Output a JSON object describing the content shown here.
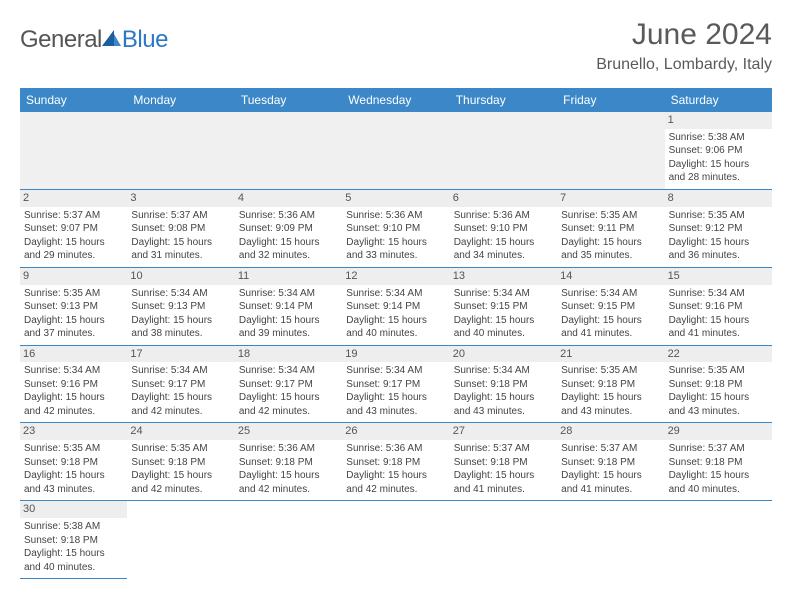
{
  "logo": {
    "part1": "General",
    "part2": "Blue"
  },
  "title": "June 2024",
  "location": "Brunello, Lombardy, Italy",
  "colors": {
    "header_bg": "#3b87c8",
    "header_text": "#ffffff",
    "date_bg": "#eeeeee",
    "empty_bg": "#f0f0f0",
    "border": "#3b87c8",
    "logo_gray": "#555555",
    "logo_blue": "#2b78c4",
    "title_color": "#5a5a5a"
  },
  "day_names": [
    "Sunday",
    "Monday",
    "Tuesday",
    "Wednesday",
    "Thursday",
    "Friday",
    "Saturday"
  ],
  "first_weekday": 6,
  "days": [
    {
      "d": 1,
      "sr": "5:38 AM",
      "ss": "9:06 PM",
      "dl": "15 hours and 28 minutes."
    },
    {
      "d": 2,
      "sr": "5:37 AM",
      "ss": "9:07 PM",
      "dl": "15 hours and 29 minutes."
    },
    {
      "d": 3,
      "sr": "5:37 AM",
      "ss": "9:08 PM",
      "dl": "15 hours and 31 minutes."
    },
    {
      "d": 4,
      "sr": "5:36 AM",
      "ss": "9:09 PM",
      "dl": "15 hours and 32 minutes."
    },
    {
      "d": 5,
      "sr": "5:36 AM",
      "ss": "9:10 PM",
      "dl": "15 hours and 33 minutes."
    },
    {
      "d": 6,
      "sr": "5:36 AM",
      "ss": "9:10 PM",
      "dl": "15 hours and 34 minutes."
    },
    {
      "d": 7,
      "sr": "5:35 AM",
      "ss": "9:11 PM",
      "dl": "15 hours and 35 minutes."
    },
    {
      "d": 8,
      "sr": "5:35 AM",
      "ss": "9:12 PM",
      "dl": "15 hours and 36 minutes."
    },
    {
      "d": 9,
      "sr": "5:35 AM",
      "ss": "9:13 PM",
      "dl": "15 hours and 37 minutes."
    },
    {
      "d": 10,
      "sr": "5:34 AM",
      "ss": "9:13 PM",
      "dl": "15 hours and 38 minutes."
    },
    {
      "d": 11,
      "sr": "5:34 AM",
      "ss": "9:14 PM",
      "dl": "15 hours and 39 minutes."
    },
    {
      "d": 12,
      "sr": "5:34 AM",
      "ss": "9:14 PM",
      "dl": "15 hours and 40 minutes."
    },
    {
      "d": 13,
      "sr": "5:34 AM",
      "ss": "9:15 PM",
      "dl": "15 hours and 40 minutes."
    },
    {
      "d": 14,
      "sr": "5:34 AM",
      "ss": "9:15 PM",
      "dl": "15 hours and 41 minutes."
    },
    {
      "d": 15,
      "sr": "5:34 AM",
      "ss": "9:16 PM",
      "dl": "15 hours and 41 minutes."
    },
    {
      "d": 16,
      "sr": "5:34 AM",
      "ss": "9:16 PM",
      "dl": "15 hours and 42 minutes."
    },
    {
      "d": 17,
      "sr": "5:34 AM",
      "ss": "9:17 PM",
      "dl": "15 hours and 42 minutes."
    },
    {
      "d": 18,
      "sr": "5:34 AM",
      "ss": "9:17 PM",
      "dl": "15 hours and 42 minutes."
    },
    {
      "d": 19,
      "sr": "5:34 AM",
      "ss": "9:17 PM",
      "dl": "15 hours and 43 minutes."
    },
    {
      "d": 20,
      "sr": "5:34 AM",
      "ss": "9:18 PM",
      "dl": "15 hours and 43 minutes."
    },
    {
      "d": 21,
      "sr": "5:35 AM",
      "ss": "9:18 PM",
      "dl": "15 hours and 43 minutes."
    },
    {
      "d": 22,
      "sr": "5:35 AM",
      "ss": "9:18 PM",
      "dl": "15 hours and 43 minutes."
    },
    {
      "d": 23,
      "sr": "5:35 AM",
      "ss": "9:18 PM",
      "dl": "15 hours and 43 minutes."
    },
    {
      "d": 24,
      "sr": "5:35 AM",
      "ss": "9:18 PM",
      "dl": "15 hours and 42 minutes."
    },
    {
      "d": 25,
      "sr": "5:36 AM",
      "ss": "9:18 PM",
      "dl": "15 hours and 42 minutes."
    },
    {
      "d": 26,
      "sr": "5:36 AM",
      "ss": "9:18 PM",
      "dl": "15 hours and 42 minutes."
    },
    {
      "d": 27,
      "sr": "5:37 AM",
      "ss": "9:18 PM",
      "dl": "15 hours and 41 minutes."
    },
    {
      "d": 28,
      "sr": "5:37 AM",
      "ss": "9:18 PM",
      "dl": "15 hours and 41 minutes."
    },
    {
      "d": 29,
      "sr": "5:37 AM",
      "ss": "9:18 PM",
      "dl": "15 hours and 40 minutes."
    },
    {
      "d": 30,
      "sr": "5:38 AM",
      "ss": "9:18 PM",
      "dl": "15 hours and 40 minutes."
    }
  ],
  "labels": {
    "sunrise": "Sunrise:",
    "sunset": "Sunset:",
    "daylight": "Daylight:"
  }
}
